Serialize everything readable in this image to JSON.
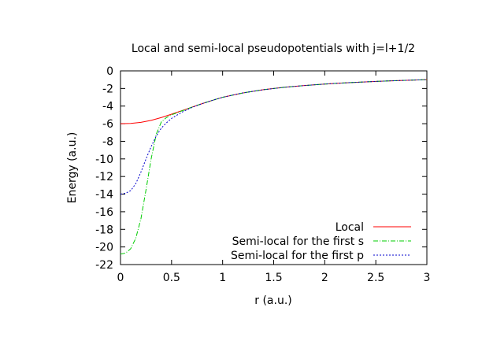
{
  "chart_data": {
    "type": "line",
    "title": "Local and semi-local pseudopotentials with j=l+1/2",
    "xlabel": "r (a.u.)",
    "ylabel": "Energy (a.u.)",
    "xlim": [
      0,
      3
    ],
    "ylim": [
      -22,
      0
    ],
    "xticks": [
      0,
      0.5,
      1,
      1.5,
      2,
      2.5,
      3
    ],
    "xtick_labels": [
      "0",
      "0.5",
      "1",
      "1.5",
      "2",
      "2.5",
      "3"
    ],
    "yticks": [
      0,
      -2,
      -4,
      -6,
      -8,
      -10,
      -12,
      -14,
      -16,
      -18,
      -20,
      -22
    ],
    "ytick_labels": [
      "0",
      "-2",
      "-4",
      "-6",
      "-8",
      "-10",
      "-12",
      "-14",
      "-16",
      "-18",
      "-20",
      "-22"
    ],
    "grid": false,
    "legend_position": "bottom-right",
    "series": [
      {
        "name": "Local",
        "color": "#ff0000",
        "dash": "solid",
        "x": [
          0,
          0.1,
          0.2,
          0.3,
          0.4,
          0.5,
          0.6,
          0.7,
          0.8,
          0.9,
          1.0,
          1.2,
          1.4,
          1.6,
          1.8,
          2.0,
          2.2,
          2.4,
          2.6,
          2.8,
          3.0
        ],
        "y": [
          -6.0,
          -5.97,
          -5.85,
          -5.62,
          -5.3,
          -4.92,
          -4.52,
          -4.12,
          -3.72,
          -3.35,
          -3.0,
          -2.5,
          -2.14,
          -1.87,
          -1.67,
          -1.5,
          -1.36,
          -1.25,
          -1.15,
          -1.07,
          -1.0
        ]
      },
      {
        "name": "Semi-local for the first s",
        "color": "#00cc00",
        "dash": "dashdot",
        "x": [
          0,
          0.05,
          0.1,
          0.15,
          0.2,
          0.25,
          0.3,
          0.35,
          0.4,
          0.45,
          0.5,
          0.6,
          0.7,
          0.8,
          0.9,
          1.0,
          1.2,
          1.4,
          1.6,
          1.8,
          2.0,
          2.2,
          2.4,
          2.6,
          2.8,
          3.0
        ],
        "y": [
          -20.8,
          -20.7,
          -20.2,
          -19.0,
          -16.8,
          -13.5,
          -10.0,
          -7.2,
          -5.8,
          -5.3,
          -5.0,
          -4.55,
          -4.12,
          -3.72,
          -3.35,
          -3.0,
          -2.5,
          -2.14,
          -1.87,
          -1.67,
          -1.5,
          -1.36,
          -1.25,
          -1.15,
          -1.07,
          -1.0
        ]
      },
      {
        "name": "Semi-local for the first p",
        "color": "#0000cc",
        "dash": "dotted",
        "x": [
          0,
          0.05,
          0.1,
          0.15,
          0.2,
          0.25,
          0.3,
          0.35,
          0.4,
          0.45,
          0.5,
          0.6,
          0.7,
          0.8,
          0.9,
          1.0,
          1.2,
          1.4,
          1.6,
          1.8,
          2.0,
          2.2,
          2.4,
          2.6,
          2.8,
          3.0
        ],
        "y": [
          -14.0,
          -13.9,
          -13.6,
          -12.8,
          -11.5,
          -10.0,
          -8.6,
          -7.4,
          -6.5,
          -5.9,
          -5.4,
          -4.7,
          -4.15,
          -3.72,
          -3.35,
          -3.0,
          -2.5,
          -2.14,
          -1.87,
          -1.67,
          -1.5,
          -1.36,
          -1.25,
          -1.15,
          -1.07,
          -1.0
        ]
      }
    ]
  }
}
